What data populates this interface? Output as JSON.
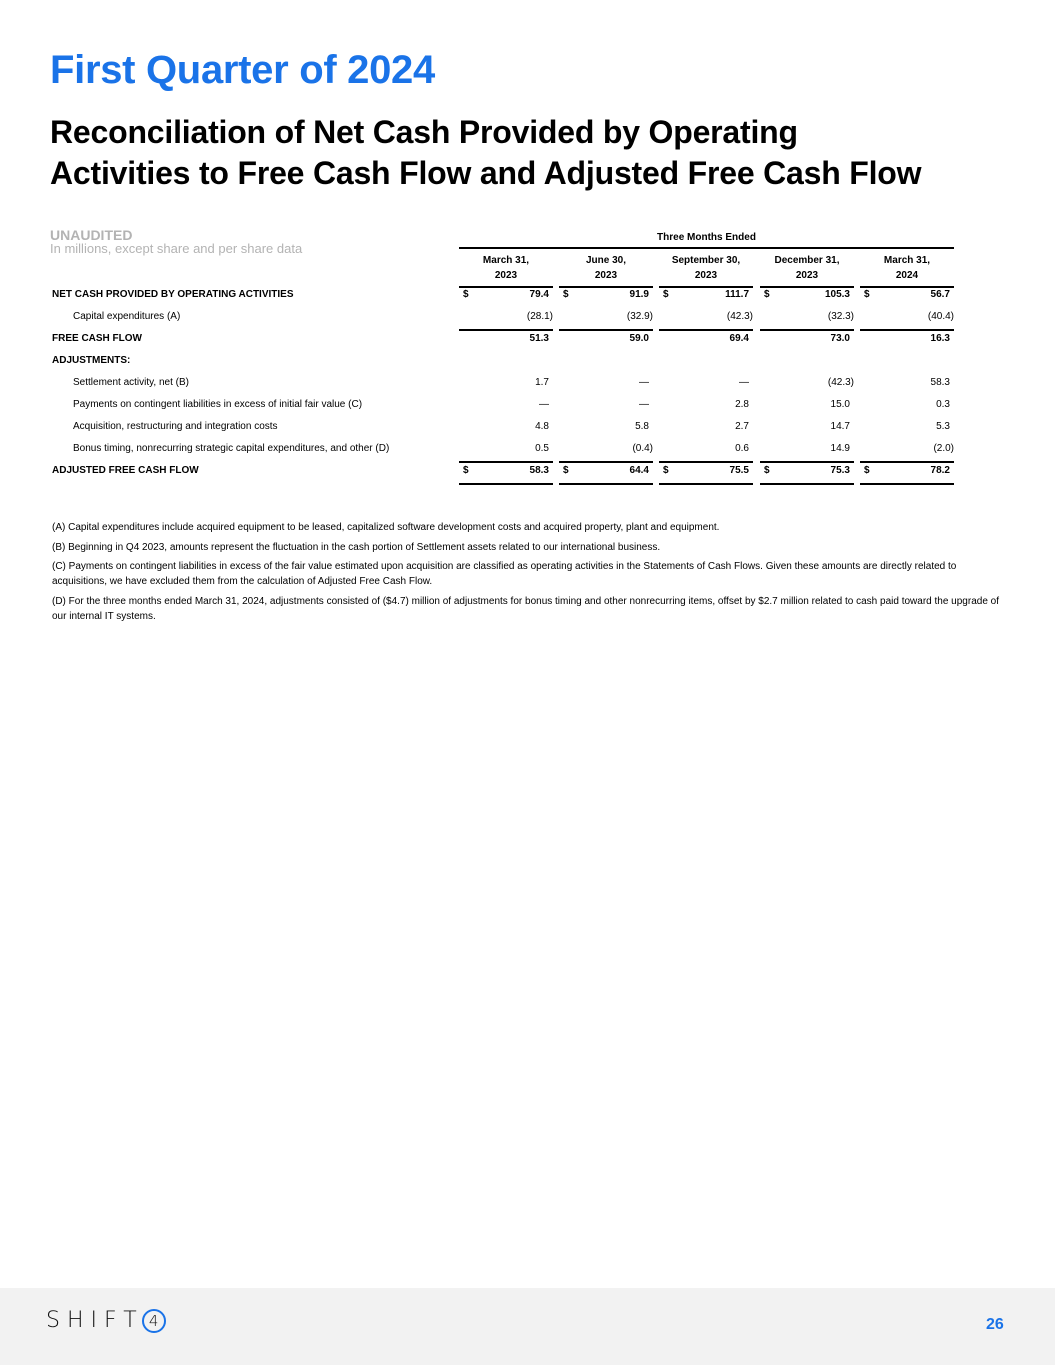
{
  "header": {
    "title": "First Quarter of 2024",
    "subtitle_line1": "Reconciliation of Net Cash Provided by Operating",
    "subtitle_line2": "Activities to Free Cash Flow and Adjusted Free Cash Flow",
    "unaudited": "UNAUDITED",
    "units": "In millions, except share and per share data"
  },
  "table": {
    "group_header": "Three Months Ended",
    "columns": [
      {
        "line1": "March 31,",
        "line2": "2023"
      },
      {
        "line1": "June 30,",
        "line2": "2023"
      },
      {
        "line1": "September 30,",
        "line2": "2023"
      },
      {
        "line1": "December 31,",
        "line2": "2023"
      },
      {
        "line1": "March 31,",
        "line2": "2024"
      }
    ],
    "rows": [
      {
        "label": "NET CASH PROVIDED BY OPERATING ACTIVITIES",
        "style": "bold",
        "dollar": "$",
        "values": [
          "79.4",
          "91.9",
          "111.7",
          "105.3",
          "56.7"
        ]
      },
      {
        "label": "Capital expenditures (A)",
        "style": "indent",
        "values": [
          "(28.1)",
          "(32.9)",
          "(42.3)",
          "(32.3)",
          "(40.4)"
        ]
      },
      {
        "label": "FREE CASH FLOW",
        "style": "bold",
        "values": [
          "51.3",
          "59.0",
          "69.4",
          "73.0",
          "16.3"
        ]
      },
      {
        "label": "ADJUSTMENTS:",
        "style": "bold",
        "values": [
          "",
          "",
          "",
          "",
          ""
        ]
      },
      {
        "label": "Settlement activity, net (B)",
        "style": "indent",
        "values": [
          "1.7",
          "—",
          "—",
          "(42.3)",
          "58.3"
        ]
      },
      {
        "label": "Payments on contingent liabilities in excess of initial fair value (C)",
        "style": "indent",
        "values": [
          "—",
          "—",
          "2.8",
          "15.0",
          "0.3"
        ]
      },
      {
        "label": "Acquisition, restructuring and integration costs",
        "style": "indent",
        "values": [
          "4.8",
          "5.8",
          "2.7",
          "14.7",
          "5.3"
        ]
      },
      {
        "label": "Bonus timing, nonrecurring strategic capital expenditures, and other (D)",
        "style": "indent",
        "values": [
          "0.5",
          "(0.4)",
          "0.6",
          "14.9",
          "(2.0)"
        ]
      },
      {
        "label": "ADJUSTED FREE CASH FLOW",
        "style": "bold",
        "dollar": "$",
        "values": [
          "58.3",
          "64.4",
          "75.5",
          "75.3",
          "78.2"
        ]
      }
    ]
  },
  "notes": [
    "(A) Capital expenditures include acquired equipment to be leased, capitalized software development costs and acquired property, plant and equipment.",
    "(B) Beginning in Q4 2023, amounts represent the fluctuation in the cash portion of Settlement assets related to our international business.",
    "(C) Payments on contingent liabilities in excess of the fair value estimated upon acquisition are classified as operating activities in the Statements of Cash Flows. Given these amounts are directly related to acquisitions, we have excluded them from the calculation of Adjusted Free Cash Flow.",
    "(D) For the three months ended March 31, 2024, adjustments consisted of ($4.7) million of adjustments for bonus timing and other nonrecurring items, offset by $2.7 million related to cash paid toward the upgrade of our internal IT systems."
  ],
  "footer": {
    "logo_text": "SHIFT",
    "logo_digit": "4",
    "page_number": "26"
  },
  "colors": {
    "accent": "#1a73e8",
    "muted": "#b3b3b3",
    "footer_bg": "#f2f2f2"
  }
}
